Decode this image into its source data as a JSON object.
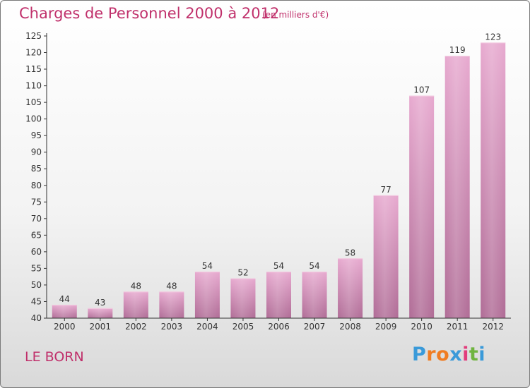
{
  "chart_data": {
    "type": "bar",
    "title": "Charges de Personnel 2000 à 2012",
    "subtitle": "(en milliers d'€)",
    "categories": [
      "2000",
      "2001",
      "2002",
      "2003",
      "2004",
      "2005",
      "2006",
      "2007",
      "2008",
      "2009",
      "2010",
      "2011",
      "2012"
    ],
    "values": [
      44,
      43,
      48,
      48,
      54,
      52,
      54,
      54,
      58,
      77,
      107,
      119,
      123
    ],
    "ylim": [
      40,
      125
    ],
    "ytick_step": 5,
    "grid": false,
    "bar_color": "#d98fb8",
    "xlabel": "",
    "ylabel": ""
  },
  "commune": "LE BORN",
  "logo": {
    "letters": [
      "P",
      "r",
      "o",
      "x",
      "i",
      "t",
      "i"
    ],
    "colors": [
      "#3a9ad9",
      "#f07c22",
      "#f07c22",
      "#3a9ad9",
      "#e23c7c",
      "#6fb43f",
      "#3a9ad9"
    ]
  },
  "colors": {
    "accent": "#c0306b",
    "axis": "#333333"
  }
}
